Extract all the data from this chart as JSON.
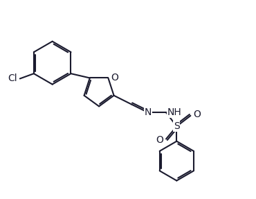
{
  "bg_color": "#ffffff",
  "line_color": "#1a1a2e",
  "bond_lw": 1.5,
  "font_size": 10,
  "figsize": [
    3.7,
    2.87
  ],
  "dpi": 100,
  "xlim": [
    0,
    10
  ],
  "ylim": [
    0,
    7.5
  ]
}
